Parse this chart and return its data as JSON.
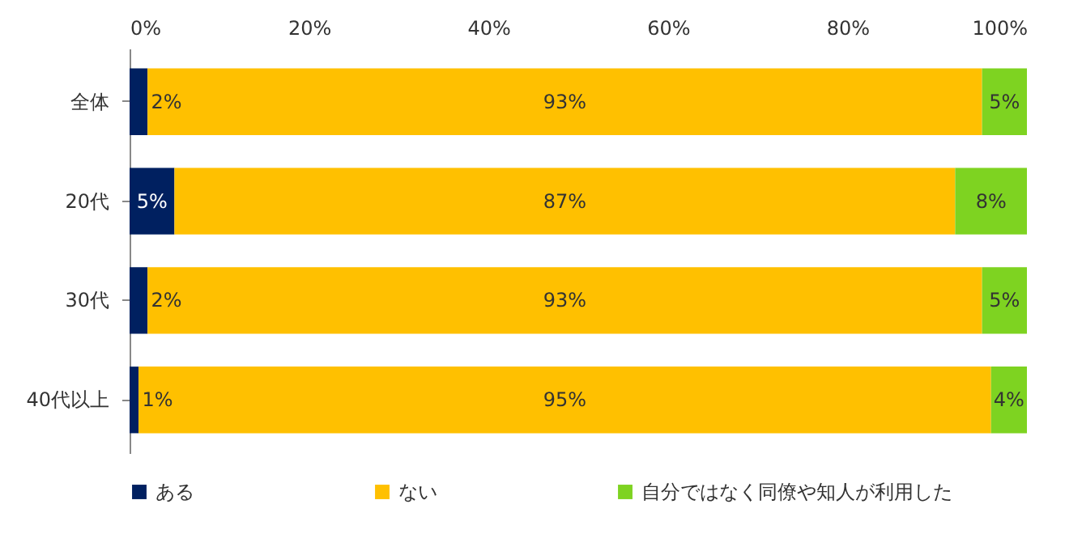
{
  "chart_data": {
    "type": "bar",
    "orientation": "horizontal",
    "stacked": true,
    "legend": "bottom",
    "grid": false,
    "categories": [
      "全体",
      "20代",
      "30代",
      "40代以上"
    ],
    "xlim": [
      0,
      100
    ],
    "xticks": [
      {
        "value": 0,
        "label": "0%"
      },
      {
        "value": 20,
        "label": "20%"
      },
      {
        "value": 40,
        "label": "40%"
      },
      {
        "value": 60,
        "label": "60%"
      },
      {
        "value": 80,
        "label": "80%"
      },
      {
        "value": 100,
        "label": "100%"
      }
    ],
    "series": [
      {
        "name": "ある",
        "color": "#002060",
        "values": [
          2,
          5,
          2,
          1
        ],
        "value_labels": [
          "2%",
          "5%",
          "2%",
          "1%"
        ]
      },
      {
        "name": "ない",
        "color": "#ffc000",
        "values": [
          93,
          87,
          93,
          95
        ],
        "value_labels": [
          "93%",
          "87%",
          "93%",
          "95%"
        ]
      },
      {
        "name": "自分ではなく同僚や知人が利用した",
        "color": "#7ed321",
        "values": [
          5,
          8,
          5,
          4
        ],
        "value_labels": [
          "5%",
          "8%",
          "5%",
          "4%"
        ]
      }
    ]
  }
}
